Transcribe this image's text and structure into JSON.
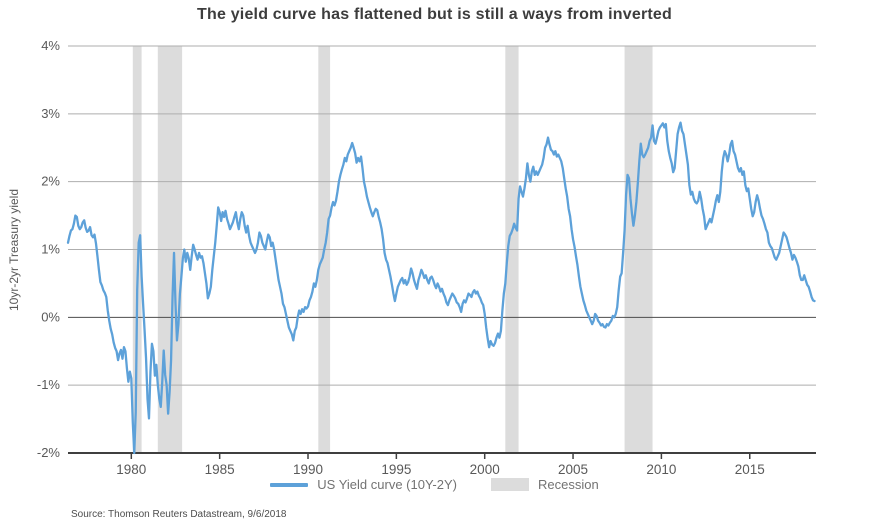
{
  "title": "The yield curve has flattened but is still a ways from inverted",
  "source": "Source: Thomson Reuters Datastream, 9/6/2018",
  "chart_data": {
    "type": "line",
    "title": "The yield curve has flattened but is still a ways from inverted",
    "xlabel": "",
    "ylabel": "10yr-2yr Treasury yield",
    "ylim": [
      -2,
      4
    ],
    "x_range": [
      1976.4167,
      2018.75
    ],
    "grid": true,
    "legend_position": "bottom",
    "yticks": [
      {
        "value": 4,
        "label": "4%"
      },
      {
        "value": 3,
        "label": "3%"
      },
      {
        "value": 2,
        "label": "2%"
      },
      {
        "value": 1,
        "label": "1%"
      },
      {
        "value": 0,
        "label": "0%"
      },
      {
        "value": -1,
        "label": "-1%"
      },
      {
        "value": -2,
        "label": "-2%"
      }
    ],
    "xticks": [
      {
        "value": 1980,
        "label": "1980"
      },
      {
        "value": 1985,
        "label": "1985"
      },
      {
        "value": 1990,
        "label": "1990"
      },
      {
        "value": 1995,
        "label": "1995"
      },
      {
        "value": 2000,
        "label": "2000"
      },
      {
        "value": 2005,
        "label": "2005"
      },
      {
        "value": 2010,
        "label": "2010"
      },
      {
        "value": 2015,
        "label": "2015"
      }
    ],
    "legend": [
      {
        "label": "US Yield curve (10Y-2Y)",
        "type": "line",
        "color": "#5da1d9"
      },
      {
        "label": "Recession",
        "type": "band",
        "color": "#dcdcdc"
      }
    ],
    "colors": {
      "line": "#5da1d9",
      "recession_band": "#dcdcdc",
      "grid": "#aeaeae",
      "zero_line": "#4d4d4d",
      "axis": "#3f3f3f",
      "tick_label": "#595959",
      "title": "#3d3d3d"
    },
    "recessions": [
      [
        1980.083,
        1980.583
      ],
      [
        1981.5,
        1982.875
      ],
      [
        1990.583,
        1991.25
      ],
      [
        2001.167,
        2001.917
      ],
      [
        2007.917,
        2009.5
      ]
    ],
    "series": [
      {
        "name": "US Yield curve (10Y-2Y)",
        "unit": "%",
        "start": 1976.4167,
        "interval_years": 0.0833333,
        "values": [
          1.1,
          1.2,
          1.28,
          1.3,
          1.38,
          1.5,
          1.48,
          1.35,
          1.3,
          1.33,
          1.4,
          1.43,
          1.32,
          1.26,
          1.28,
          1.33,
          1.21,
          1.18,
          1.22,
          1.09,
          0.9,
          0.7,
          0.52,
          0.47,
          0.4,
          0.36,
          0.3,
          0.1,
          -0.05,
          -0.17,
          -0.25,
          -0.37,
          -0.45,
          -0.5,
          -0.63,
          -0.53,
          -0.48,
          -0.61,
          -0.44,
          -0.5,
          -0.75,
          -0.95,
          -0.8,
          -0.9,
          -1.55,
          -2.0,
          -1.4,
          0.4,
          1.1,
          1.21,
          0.6,
          0.2,
          -0.19,
          -0.6,
          -1.2,
          -1.49,
          -0.8,
          -0.39,
          -0.5,
          -0.86,
          -0.7,
          -1.0,
          -1.2,
          -1.32,
          -0.95,
          -0.49,
          -0.85,
          -1.0,
          -1.42,
          -1.1,
          -0.63,
          0.3,
          0.95,
          0.2,
          -0.34,
          -0.1,
          0.35,
          0.6,
          0.87,
          1.0,
          0.82,
          0.95,
          0.87,
          0.7,
          0.9,
          1.07,
          1.0,
          0.92,
          0.85,
          0.95,
          0.88,
          0.9,
          0.8,
          0.65,
          0.5,
          0.28,
          0.35,
          0.45,
          0.7,
          0.9,
          1.1,
          1.35,
          1.62,
          1.55,
          1.42,
          1.55,
          1.48,
          1.57,
          1.45,
          1.38,
          1.3,
          1.35,
          1.4,
          1.48,
          1.55,
          1.4,
          1.3,
          1.45,
          1.55,
          1.5,
          1.35,
          1.25,
          1.35,
          1.2,
          1.1,
          1.05,
          1.0,
          0.95,
          1.0,
          1.1,
          1.25,
          1.2,
          1.1,
          1.05,
          1.0,
          1.12,
          1.22,
          1.18,
          1.05,
          1.1,
          1.0,
          0.85,
          0.7,
          0.55,
          0.45,
          0.35,
          0.2,
          0.15,
          0.05,
          -0.05,
          -0.15,
          -0.2,
          -0.25,
          -0.34,
          -0.2,
          -0.15,
          0.0,
          0.1,
          0.05,
          0.12,
          0.08,
          0.15,
          0.13,
          0.16,
          0.25,
          0.3,
          0.38,
          0.5,
          0.45,
          0.55,
          0.7,
          0.78,
          0.83,
          0.88,
          1.0,
          1.1,
          1.25,
          1.45,
          1.5,
          1.62,
          1.7,
          1.65,
          1.72,
          1.85,
          2.0,
          2.1,
          2.18,
          2.25,
          2.35,
          2.3,
          2.4,
          2.45,
          2.5,
          2.57,
          2.5,
          2.42,
          2.28,
          2.35,
          2.3,
          2.37,
          2.2,
          2.0,
          1.9,
          1.78,
          1.7,
          1.62,
          1.55,
          1.49,
          1.55,
          1.6,
          1.58,
          1.48,
          1.4,
          1.3,
          1.15,
          0.95,
          0.85,
          0.8,
          0.7,
          0.6,
          0.48,
          0.35,
          0.24,
          0.35,
          0.45,
          0.5,
          0.55,
          0.58,
          0.5,
          0.55,
          0.48,
          0.52,
          0.6,
          0.72,
          0.65,
          0.55,
          0.48,
          0.42,
          0.55,
          0.62,
          0.7,
          0.65,
          0.58,
          0.62,
          0.55,
          0.5,
          0.58,
          0.6,
          0.55,
          0.48,
          0.43,
          0.5,
          0.45,
          0.38,
          0.42,
          0.35,
          0.3,
          0.22,
          0.18,
          0.25,
          0.3,
          0.35,
          0.32,
          0.28,
          0.22,
          0.2,
          0.15,
          0.08,
          0.2,
          0.25,
          0.22,
          0.28,
          0.35,
          0.33,
          0.3,
          0.37,
          0.4,
          0.35,
          0.38,
          0.32,
          0.28,
          0.22,
          0.18,
          0.05,
          -0.15,
          -0.31,
          -0.44,
          -0.35,
          -0.4,
          -0.42,
          -0.38,
          -0.3,
          -0.24,
          -0.3,
          -0.2,
          0.1,
          0.35,
          0.5,
          0.8,
          1.05,
          1.2,
          1.24,
          1.3,
          1.38,
          1.32,
          1.28,
          1.75,
          1.93,
          1.85,
          1.78,
          1.9,
          2.05,
          2.27,
          2.1,
          2.0,
          2.15,
          2.22,
          2.1,
          2.15,
          2.1,
          2.15,
          2.2,
          2.25,
          2.35,
          2.5,
          2.55,
          2.65,
          2.55,
          2.47,
          2.45,
          2.4,
          2.45,
          2.37,
          2.4,
          2.35,
          2.3,
          2.2,
          2.05,
          1.9,
          1.78,
          1.6,
          1.49,
          1.3,
          1.15,
          1.04,
          0.9,
          0.77,
          0.6,
          0.45,
          0.35,
          0.25,
          0.18,
          0.1,
          0.05,
          0.0,
          -0.05,
          -0.1,
          -0.05,
          0.05,
          0.02,
          -0.05,
          -0.08,
          -0.12,
          -0.1,
          -0.14,
          -0.15,
          -0.1,
          -0.12,
          -0.08,
          -0.05,
          0.02,
          0.0,
          0.05,
          0.15,
          0.4,
          0.6,
          0.65,
          0.95,
          1.28,
          1.8,
          2.1,
          2.05,
          1.75,
          1.53,
          1.35,
          1.5,
          1.7,
          1.98,
          2.3,
          2.56,
          2.4,
          2.36,
          2.4,
          2.45,
          2.5,
          2.6,
          2.65,
          2.83,
          2.6,
          2.56,
          2.65,
          2.75,
          2.8,
          2.83,
          2.86,
          2.8,
          2.85,
          2.6,
          2.45,
          2.35,
          2.27,
          2.14,
          2.2,
          2.45,
          2.7,
          2.8,
          2.87,
          2.75,
          2.7,
          2.55,
          2.4,
          2.25,
          1.95,
          1.81,
          1.85,
          1.75,
          1.7,
          1.68,
          1.72,
          1.85,
          1.75,
          1.6,
          1.49,
          1.3,
          1.35,
          1.4,
          1.45,
          1.4,
          1.5,
          1.6,
          1.72,
          1.8,
          1.7,
          1.85,
          2.15,
          2.35,
          2.45,
          2.4,
          2.3,
          2.4,
          2.55,
          2.6,
          2.45,
          2.4,
          2.3,
          2.2,
          2.15,
          2.2,
          2.1,
          2.15,
          1.95,
          1.86,
          1.9,
          1.75,
          1.6,
          1.49,
          1.55,
          1.7,
          1.8,
          1.72,
          1.6,
          1.5,
          1.45,
          1.38,
          1.3,
          1.25,
          1.1,
          1.05,
          1.02,
          0.95,
          0.88,
          0.85,
          0.9,
          0.95,
          1.05,
          1.15,
          1.25,
          1.22,
          1.18,
          1.1,
          1.02,
          0.95,
          0.85,
          0.92,
          0.88,
          0.82,
          0.75,
          0.62,
          0.55,
          0.55,
          0.62,
          0.55,
          0.48,
          0.45,
          0.38,
          0.3,
          0.25,
          0.24
        ]
      }
    ]
  }
}
